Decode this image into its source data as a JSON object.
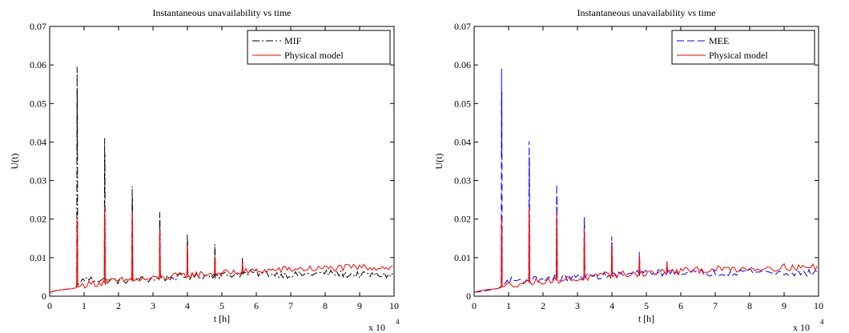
{
  "chart_data": [
    {
      "type": "line",
      "title": "Instantaneous unavailability vs time",
      "xlabel": "t [h]",
      "ylabel": "U(t)",
      "x_multiplier_label": "x 10",
      "x_multiplier_exp": "4",
      "xlim": [
        0,
        100000
      ],
      "ylim": [
        0,
        0.07
      ],
      "xticks": [
        0,
        10000,
        20000,
        30000,
        40000,
        50000,
        60000,
        70000,
        80000,
        90000,
        100000
      ],
      "xtick_labels": [
        "0",
        "1",
        "2",
        "3",
        "4",
        "5",
        "6",
        "7",
        "8",
        "9",
        "10"
      ],
      "yticks": [
        0,
        0.01,
        0.02,
        0.03,
        0.04,
        0.05,
        0.06,
        0.07
      ],
      "ytick_labels": [
        "0",
        "0.01",
        "0.02",
        "0.03",
        "0.04",
        "0.05",
        "0.06",
        "0.07"
      ],
      "grid": false,
      "legend": "top-right",
      "series": [
        {
          "name": "MIF",
          "color": "#000000",
          "style": "dashdot",
          "baseline": [
            [
              0,
              0.001
            ],
            [
              2000,
              0.0015
            ],
            [
              7000,
              0.002
            ],
            [
              10000,
              0.0045
            ],
            [
              20000,
              0.004
            ],
            [
              30000,
              0.0045
            ],
            [
              40000,
              0.005
            ],
            [
              50000,
              0.0055
            ],
            [
              60000,
              0.006
            ],
            [
              70000,
              0.0055
            ],
            [
              80000,
              0.006
            ],
            [
              90000,
              0.0055
            ],
            [
              100000,
              0.0055
            ]
          ],
          "spikes": [
            [
              8000,
              0.0595
            ],
            [
              16000,
              0.041
            ],
            [
              24000,
              0.0285
            ],
            [
              32000,
              0.0218
            ],
            [
              40000,
              0.016
            ],
            [
              48000,
              0.0135
            ],
            [
              56000,
              0.0101
            ]
          ]
        },
        {
          "name": "Physical model",
          "color": "#ff0000",
          "style": "solid",
          "baseline": [
            [
              0,
              0.001
            ],
            [
              2000,
              0.0015
            ],
            [
              7000,
              0.002
            ],
            [
              10000,
              0.003
            ],
            [
              20000,
              0.004
            ],
            [
              30000,
              0.0045
            ],
            [
              40000,
              0.0055
            ],
            [
              50000,
              0.006
            ],
            [
              60000,
              0.0065
            ],
            [
              70000,
              0.007
            ],
            [
              80000,
              0.0072
            ],
            [
              90000,
              0.0075
            ],
            [
              100000,
              0.0075
            ]
          ],
          "spikes": [
            [
              8000,
              0.0205
            ],
            [
              16000,
              0.0232
            ],
            [
              24000,
              0.0222
            ],
            [
              32000,
              0.0175
            ],
            [
              40000,
              0.0135
            ],
            [
              48000,
              0.0105
            ],
            [
              56000,
              0.009
            ]
          ]
        }
      ]
    },
    {
      "type": "line",
      "title": "Instantaneous unavailability vs time",
      "xlabel": "t [h]",
      "ylabel": "U(t)",
      "x_multiplier_label": "x 10",
      "x_multiplier_exp": "4",
      "xlim": [
        0,
        100000
      ],
      "ylim": [
        0,
        0.07
      ],
      "xticks": [
        0,
        10000,
        20000,
        30000,
        40000,
        50000,
        60000,
        70000,
        80000,
        90000,
        100000
      ],
      "xtick_labels": [
        "0",
        "1",
        "2",
        "3",
        "4",
        "5",
        "6",
        "7",
        "8",
        "9",
        "10"
      ],
      "yticks": [
        0,
        0.01,
        0.02,
        0.03,
        0.04,
        0.05,
        0.06,
        0.07
      ],
      "ytick_labels": [
        "0",
        "0.01",
        "0.02",
        "0.03",
        "0.04",
        "0.05",
        "0.06",
        "0.07"
      ],
      "grid": false,
      "legend": "top-right",
      "series": [
        {
          "name": "MEE",
          "color": "#0000ff",
          "style": "dashed",
          "baseline": [
            [
              0,
              0.001
            ],
            [
              2000,
              0.0012
            ],
            [
              7000,
              0.002
            ],
            [
              10000,
              0.004
            ],
            [
              20000,
              0.0045
            ],
            [
              30000,
              0.005
            ],
            [
              40000,
              0.0055
            ],
            [
              50000,
              0.006
            ],
            [
              60000,
              0.0062
            ],
            [
              70000,
              0.006
            ],
            [
              80000,
              0.0065
            ],
            [
              90000,
              0.006
            ],
            [
              100000,
              0.006
            ]
          ],
          "spikes": [
            [
              8000,
              0.059
            ],
            [
              16000,
              0.0402
            ],
            [
              24000,
              0.029
            ],
            [
              32000,
              0.0205
            ],
            [
              40000,
              0.0155
            ],
            [
              48000,
              0.0115
            ],
            [
              56000,
              0.009
            ]
          ]
        },
        {
          "name": "Physical model",
          "color": "#ff0000",
          "style": "solid",
          "baseline": [
            [
              0,
              0.001
            ],
            [
              2000,
              0.0015
            ],
            [
              7000,
              0.002
            ],
            [
              10000,
              0.003
            ],
            [
              20000,
              0.004
            ],
            [
              30000,
              0.0045
            ],
            [
              40000,
              0.0055
            ],
            [
              50000,
              0.006
            ],
            [
              60000,
              0.0065
            ],
            [
              70000,
              0.007
            ],
            [
              80000,
              0.0072
            ],
            [
              90000,
              0.0075
            ],
            [
              100000,
              0.0075
            ]
          ],
          "spikes": [
            [
              8000,
              0.0205
            ],
            [
              16000,
              0.0232
            ],
            [
              24000,
              0.0222
            ],
            [
              32000,
              0.0175
            ],
            [
              40000,
              0.0135
            ],
            [
              48000,
              0.0105
            ],
            [
              56000,
              0.009
            ]
          ]
        }
      ]
    }
  ]
}
